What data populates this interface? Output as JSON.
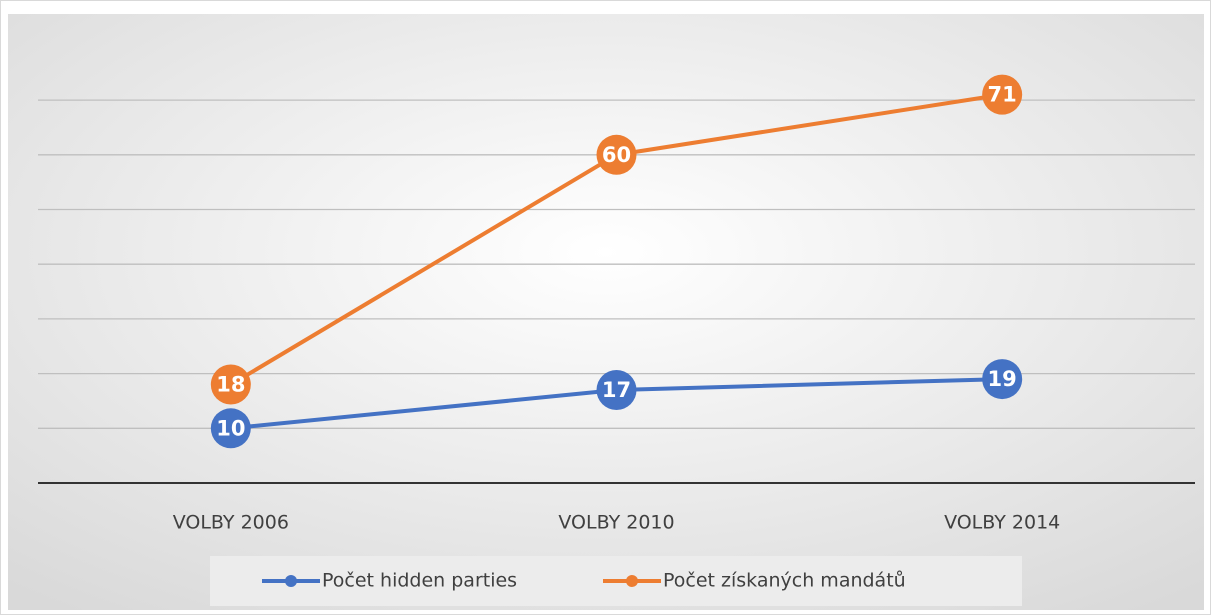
{
  "chart_data": {
    "type": "line",
    "categories": [
      "VOLBY 2006",
      "VOLBY 2010",
      "VOLBY 2014"
    ],
    "series": [
      {
        "name": "Počet hidden parties",
        "color": "#4472c4",
        "values": [
          10,
          17,
          19
        ]
      },
      {
        "name": "Počet získaných mandátů",
        "color": "#ed7d31",
        "values": [
          18,
          60,
          71
        ]
      }
    ],
    "ylim": [
      0,
      80
    ],
    "yticks": [
      0,
      10,
      20,
      30,
      40,
      50,
      60,
      70
    ],
    "grid": true,
    "legend": "bottom"
  }
}
